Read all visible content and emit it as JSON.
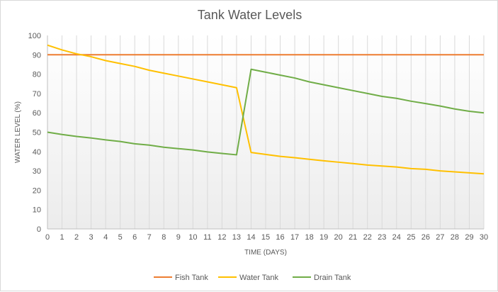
{
  "chart_data": {
    "type": "line",
    "title": "Tank Water  Levels",
    "xlabel": "TIME (DAYS)",
    "ylabel": "WATER LEVEL (%)",
    "xlim": [
      0,
      30
    ],
    "ylim": [
      0,
      100
    ],
    "x_ticks": [
      0,
      1,
      2,
      3,
      4,
      5,
      6,
      7,
      8,
      9,
      10,
      11,
      12,
      13,
      14,
      15,
      16,
      17,
      18,
      19,
      20,
      21,
      22,
      23,
      24,
      25,
      26,
      27,
      28,
      29,
      30
    ],
    "y_ticks": [
      0,
      10,
      20,
      30,
      40,
      50,
      60,
      70,
      80,
      90,
      100
    ],
    "grid": "vertical",
    "legend_position": "bottom",
    "x": [
      0,
      1,
      2,
      3,
      4,
      5,
      6,
      7,
      8,
      9,
      10,
      11,
      12,
      13,
      14,
      15,
      16,
      17,
      18,
      19,
      20,
      21,
      22,
      23,
      24,
      25,
      26,
      27,
      28,
      29,
      30
    ],
    "series": [
      {
        "name": "Fish Tank",
        "color": "#ed7d31",
        "values": [
          90,
          90,
          90,
          90,
          90,
          90,
          90,
          90,
          90,
          90,
          90,
          90,
          90,
          90,
          90,
          90,
          90,
          90,
          90,
          90,
          90,
          90,
          90,
          90,
          90,
          90,
          90,
          90,
          90,
          90,
          90
        ]
      },
      {
        "name": "Water Tank",
        "color": "#ffc000",
        "values": [
          95,
          92.5,
          90.5,
          89,
          87,
          85.5,
          84,
          82,
          80.5,
          79,
          77.5,
          76,
          74.5,
          73,
          39.5,
          38.5,
          37.5,
          36.8,
          36,
          35.2,
          34.5,
          33.8,
          33,
          32.5,
          32,
          31.2,
          30.8,
          30,
          29.5,
          29,
          28.5
        ]
      },
      {
        "name": "Drain Tank",
        "color": "#70ad47",
        "values": [
          50,
          48.8,
          47.8,
          47,
          46,
          45.2,
          44,
          43.3,
          42.2,
          41.5,
          40.8,
          39.8,
          39,
          38.3,
          82.5,
          81,
          79.5,
          78,
          76,
          74.5,
          73,
          71.5,
          70,
          68.5,
          67.5,
          66,
          64.8,
          63.5,
          62,
          60.8,
          60
        ]
      }
    ]
  }
}
